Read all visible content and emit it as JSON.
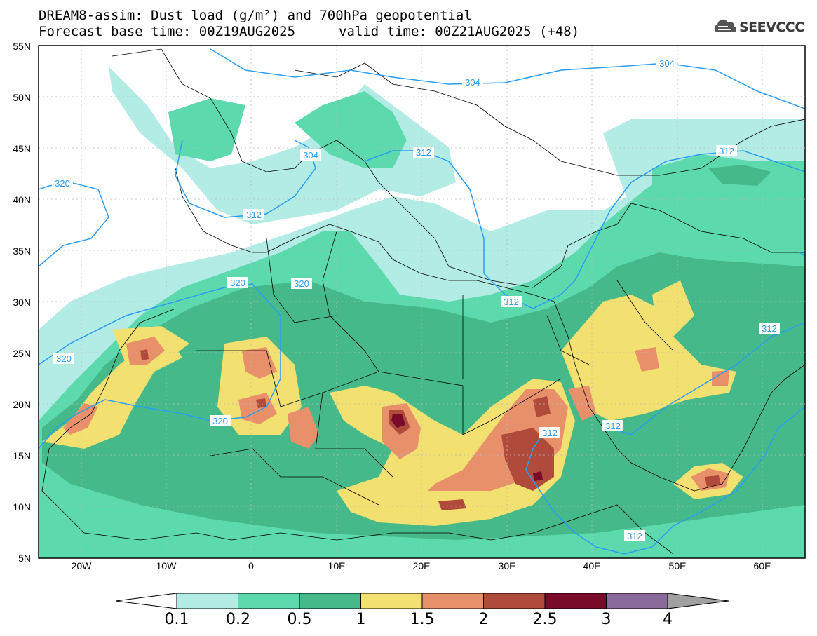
{
  "header": {
    "title_line1": "DREAM8-assim: Dust load (g/m²) and 700hPa geopotential",
    "title_line2": "Forecast base time: 00Z19AUG2025",
    "valid_time": "valid time: 00Z21AUG2025 (+48)",
    "logo_text": "SEEVCCC",
    "logo_icon": "cloud-logo-icon"
  },
  "axes": {
    "lat_labels": [
      "55N",
      "50N",
      "45N",
      "40N",
      "35N",
      "30N",
      "25N",
      "20N",
      "15N",
      "10N",
      "5N"
    ],
    "lon_labels": [
      "20W",
      "10W",
      "0",
      "10E",
      "20E",
      "30E",
      "40E",
      "50E",
      "60E"
    ]
  },
  "contours": {
    "labels": [
      "304",
      "304",
      "304",
      "312",
      "312",
      "312",
      "312",
      "312",
      "312",
      "312",
      "312",
      "320",
      "320",
      "320",
      "320",
      "320"
    ]
  },
  "colorbar": {
    "labels": [
      "0.1",
      "0.2",
      "0.5",
      "1",
      "1.5",
      "2",
      "2.5",
      "3",
      "4"
    ],
    "colors": [
      "#b3ece4",
      "#5dd9ae",
      "#46b98a",
      "#f2e070",
      "#e8906a",
      "#b04a3a",
      "#7a0a2a",
      "#8a6a9a",
      "#a0a0a0"
    ]
  },
  "palette": {
    "contour_line": "#2a9df4",
    "land_border": "#000000"
  }
}
